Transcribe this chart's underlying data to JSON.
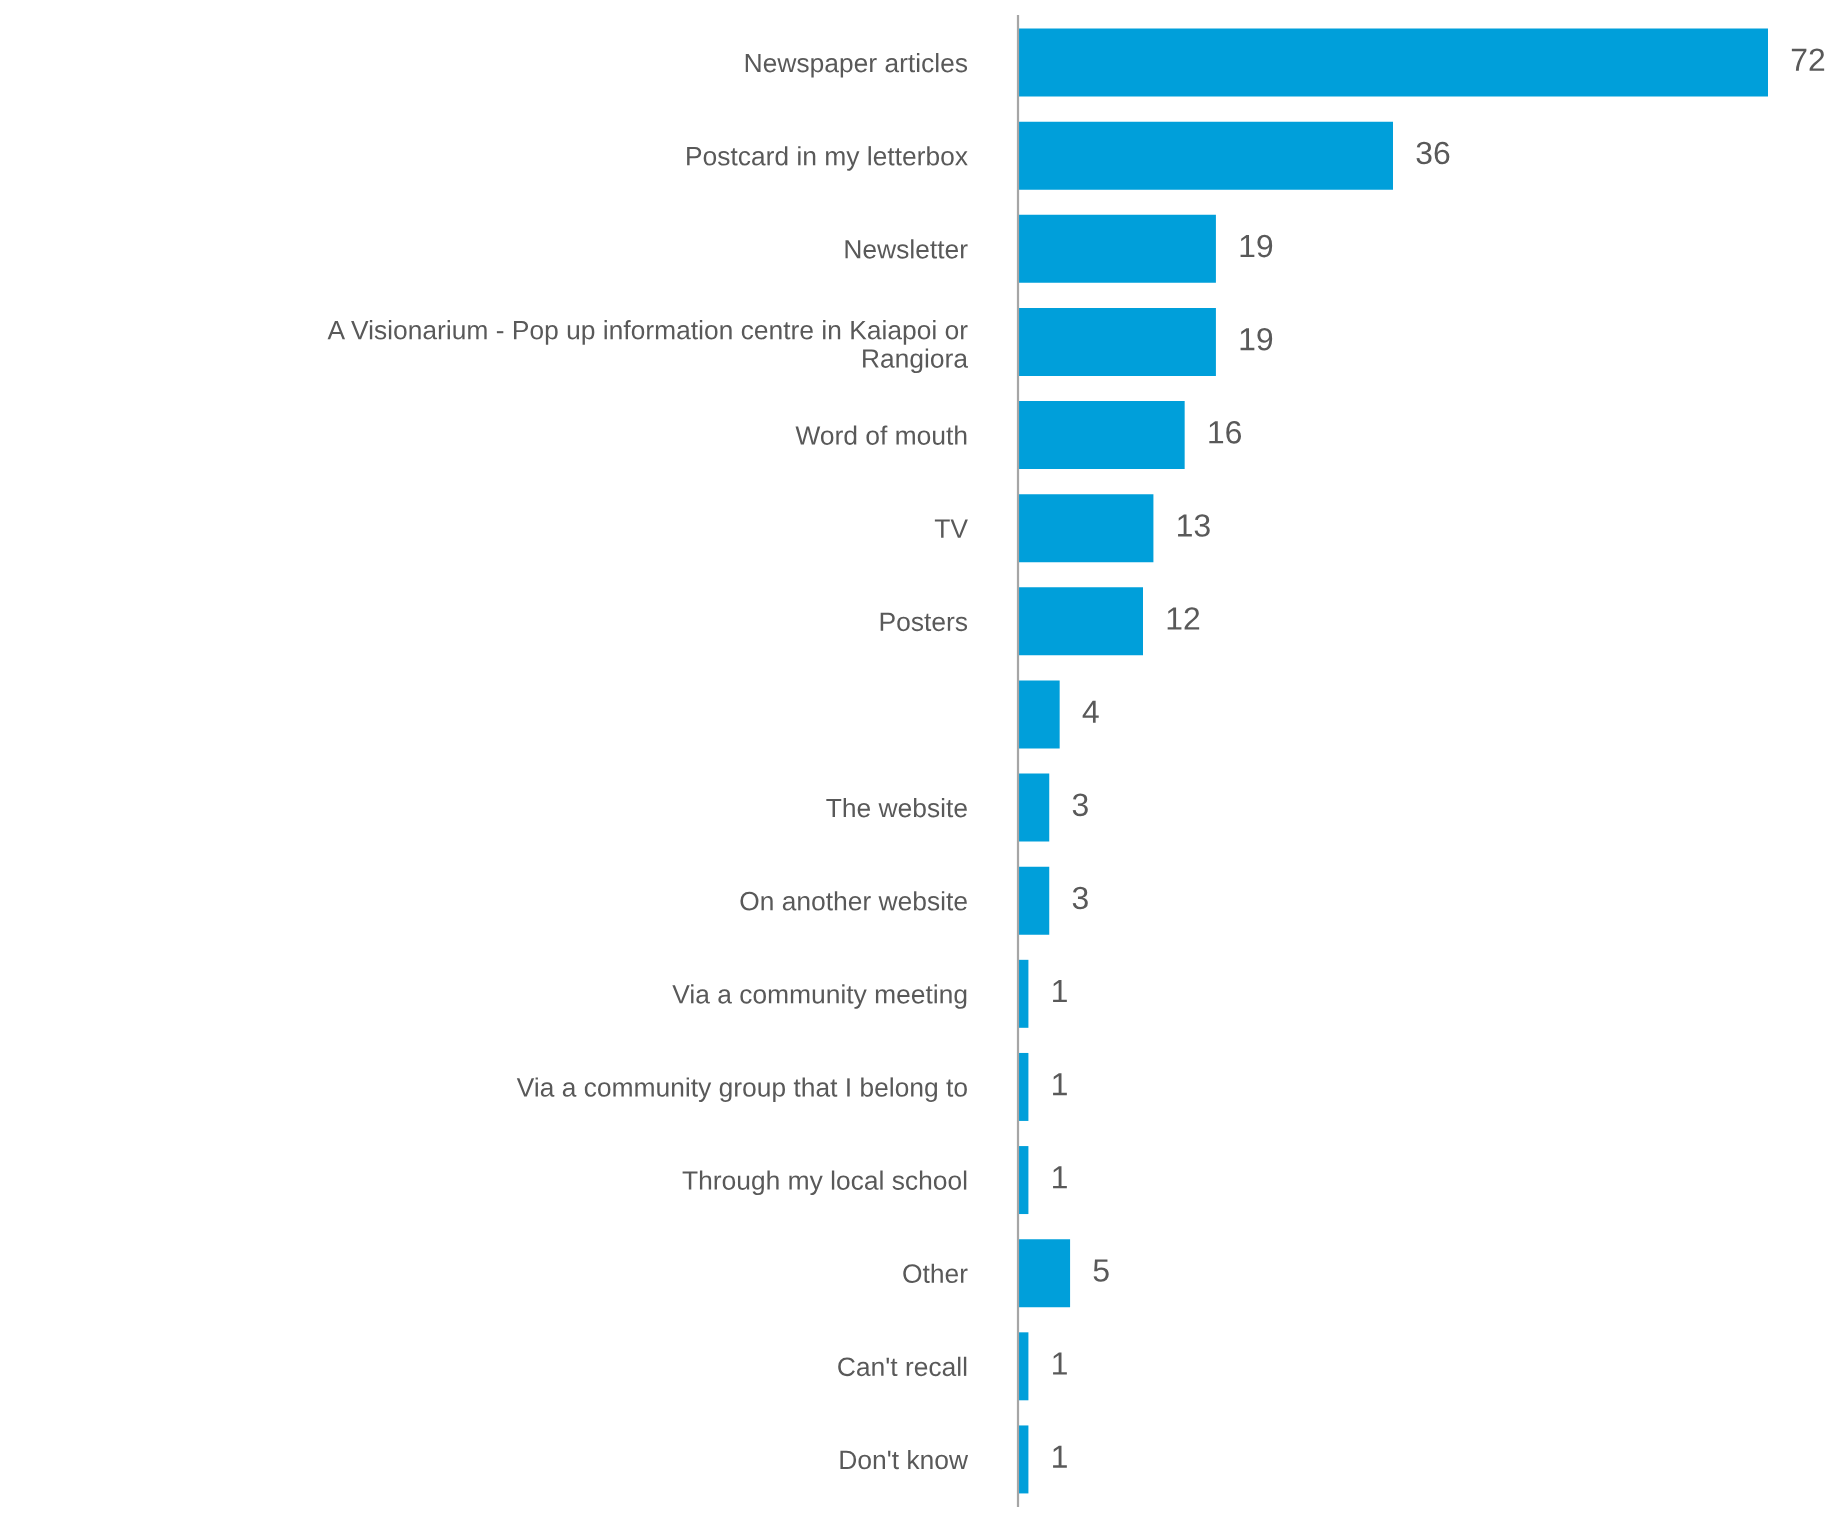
{
  "chart_data": {
    "type": "bar",
    "orientation": "horizontal",
    "categories": [
      "Newspaper articles",
      "Postcard in my letterbox",
      "Newsletter",
      "A Visionarium - Pop up information centre in Kaiapoi or\nRangiora",
      "Word of mouth",
      "TV",
      "Posters",
      null,
      "The website",
      "On another website",
      "Via a community meeting",
      "Via a community group that I belong to",
      "Through my local school",
      "Other",
      "Can't recall",
      "Don't know"
    ],
    "values": [
      72,
      36,
      19,
      19,
      16,
      13,
      12,
      4,
      3,
      3,
      1,
      1,
      1,
      5,
      1,
      1
    ],
    "color": "#009fda",
    "data_labels": true,
    "grid": false,
    "legend": false
  }
}
